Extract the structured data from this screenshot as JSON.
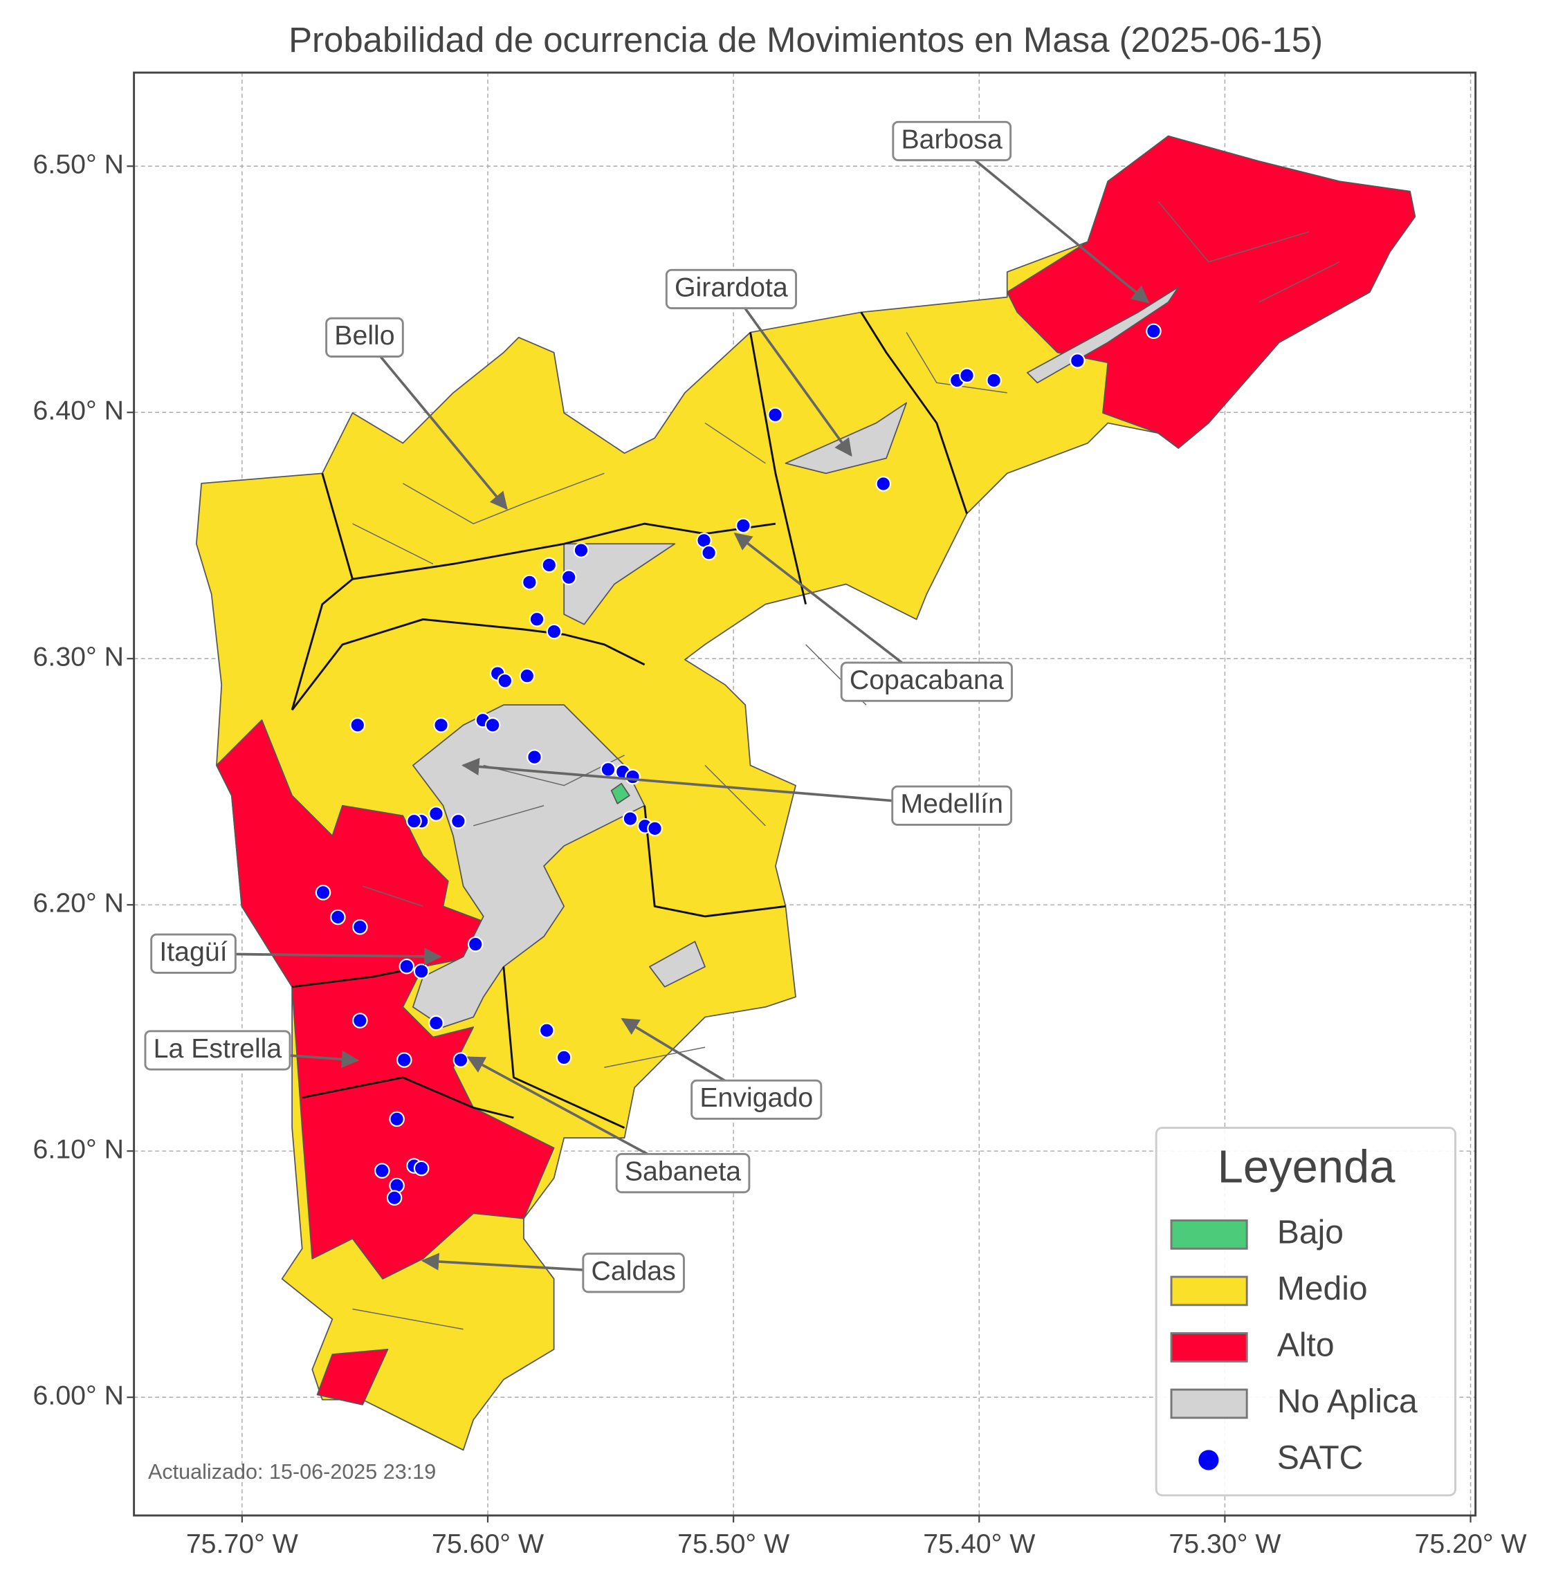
{
  "title": "Probabilidad de ocurrencia de Movimientos en Masa (2025-06-15)",
  "map": {
    "xlim": [
      -75.744,
      -75.198
    ],
    "ylim": [
      5.952,
      6.538
    ],
    "xticks": [
      {
        "value": -75.7,
        "label": "75.70° W"
      },
      {
        "value": -75.6,
        "label": "75.60° W"
      },
      {
        "value": -75.5,
        "label": "75.50° W"
      },
      {
        "value": -75.4,
        "label": "75.40° W"
      },
      {
        "value": -75.3,
        "label": "75.30° W"
      },
      {
        "value": -75.2,
        "label": "75.20° W"
      }
    ],
    "yticks": [
      {
        "value": 6.0,
        "label": "6.00° N"
      },
      {
        "value": 6.1,
        "label": "6.10° N"
      },
      {
        "value": 6.2,
        "label": "6.20° N"
      },
      {
        "value": 6.3,
        "label": "6.30° N"
      },
      {
        "value": 6.4,
        "label": "6.40° N"
      },
      {
        "value": 6.5,
        "label": "6.50° N"
      }
    ],
    "grid": true,
    "stations": [
      [
        -75.329,
        6.433
      ],
      [
        -75.36,
        6.421
      ],
      [
        -75.409,
        6.413
      ],
      [
        -75.405,
        6.415
      ],
      [
        -75.394,
        6.413
      ],
      [
        -75.483,
        6.399
      ],
      [
        -75.439,
        6.371
      ],
      [
        -75.496,
        6.354
      ],
      [
        -75.512,
        6.348
      ],
      [
        -75.51,
        6.343
      ],
      [
        -75.562,
        6.344
      ],
      [
        -75.575,
        6.338
      ],
      [
        -75.567,
        6.333
      ],
      [
        -75.583,
        6.331
      ],
      [
        -75.58,
        6.316
      ],
      [
        -75.573,
        6.311
      ],
      [
        -75.596,
        6.294
      ],
      [
        -75.593,
        6.291
      ],
      [
        -75.584,
        6.293
      ],
      [
        -75.653,
        6.273
      ],
      [
        -75.619,
        6.273
      ],
      [
        -75.602,
        6.275
      ],
      [
        -75.598,
        6.273
      ],
      [
        -75.581,
        6.26
      ],
      [
        -75.551,
        6.255
      ],
      [
        -75.545,
        6.254
      ],
      [
        -75.541,
        6.252
      ],
      [
        -75.542,
        6.235
      ],
      [
        -75.536,
        6.232
      ],
      [
        -75.532,
        6.231
      ],
      [
        -75.621,
        6.237
      ],
      [
        -75.627,
        6.234
      ],
      [
        -75.63,
        6.234
      ],
      [
        -75.612,
        6.234
      ],
      [
        -75.667,
        6.205
      ],
      [
        -75.661,
        6.195
      ],
      [
        -75.652,
        6.191
      ],
      [
        -75.605,
        6.184
      ],
      [
        -75.633,
        6.175
      ],
      [
        -75.627,
        6.173
      ],
      [
        -75.652,
        6.153
      ],
      [
        -75.621,
        6.152
      ],
      [
        -75.576,
        6.149
      ],
      [
        -75.634,
        6.137
      ],
      [
        -75.611,
        6.137
      ],
      [
        -75.569,
        6.138
      ],
      [
        -75.637,
        6.113
      ],
      [
        -75.643,
        6.092
      ],
      [
        -75.63,
        6.094
      ],
      [
        -75.627,
        6.093
      ],
      [
        -75.637,
        6.086
      ],
      [
        -75.638,
        6.081
      ]
    ]
  },
  "annotations": [
    "Barbosa",
    "Girardota",
    "Bello",
    "Copacabana",
    "Medellín",
    "Itagüí",
    "La Estrella",
    "Envigado",
    "Sabaneta",
    "Caldas"
  ],
  "legend": {
    "title": "Leyenda",
    "items": [
      {
        "label": "Bajo",
        "color": "#4ccb7a",
        "marker": "patch"
      },
      {
        "label": "Medio",
        "color": "#fbe02a",
        "marker": "patch"
      },
      {
        "label": "Alto",
        "color": "#ff0033",
        "marker": "patch"
      },
      {
        "label": "No Aplica",
        "color": "#d3d3d3",
        "marker": "patch"
      },
      {
        "label": "SATC",
        "color": "#0000ff",
        "marker": "dot"
      }
    ]
  },
  "updated": "Actualizado: 15-06-2025 23:19"
}
